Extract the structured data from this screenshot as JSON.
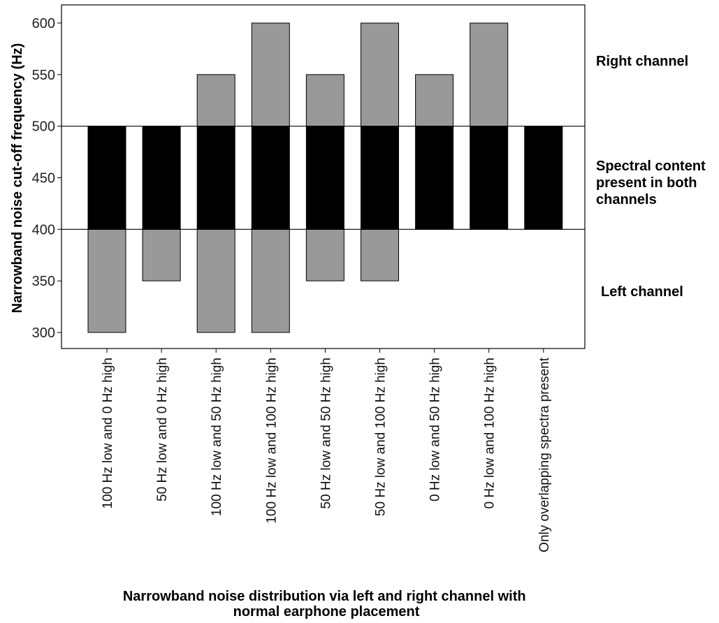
{
  "chart_data": {
    "type": "bar",
    "subtype": "floating-stacked",
    "xlabel": [
      "Narrowband noise distribution via left and right channel with",
      "normal earphone placement"
    ],
    "ylabel": "Narrowband noise cut-off frequency (Hz)",
    "ylim": [
      290,
      625
    ],
    "yticks": [
      300,
      350,
      400,
      450,
      500,
      550,
      600
    ],
    "grid": false,
    "reference_lines": [
      400,
      500
    ],
    "categories": [
      "100 Hz low and 0 Hz high",
      "50 Hz low and 0 Hz high",
      "100 Hz low and 50 Hz high",
      "100 Hz low and 100 Hz high",
      "50 Hz low and 50 Hz high",
      "50 Hz low and 100 Hz high",
      "0 Hz low and 50 Hz high",
      "0 Hz low and 100 Hz high",
      "Only overlapping spectra present"
    ],
    "series": [
      {
        "segment": "overlap",
        "color": "#000000",
        "low": [
          400,
          400,
          400,
          400,
          400,
          400,
          400,
          400,
          400
        ],
        "high": [
          500,
          500,
          500,
          500,
          500,
          500,
          500,
          500,
          500
        ]
      },
      {
        "segment": "left",
        "color": "#999999",
        "low": [
          300,
          350,
          300,
          300,
          350,
          350,
          400,
          400,
          400
        ],
        "high": [
          400,
          400,
          400,
          400,
          400,
          400,
          400,
          400,
          400
        ]
      },
      {
        "segment": "right",
        "color": "#999999",
        "low": [
          500,
          500,
          500,
          500,
          500,
          500,
          500,
          500,
          500
        ],
        "high": [
          500,
          500,
          550,
          600,
          550,
          600,
          550,
          600,
          500
        ]
      }
    ],
    "annotations": {
      "right": "Right channel",
      "both": [
        "Spectral content",
        "present in both",
        "channels"
      ],
      "left": "Left channel"
    }
  }
}
